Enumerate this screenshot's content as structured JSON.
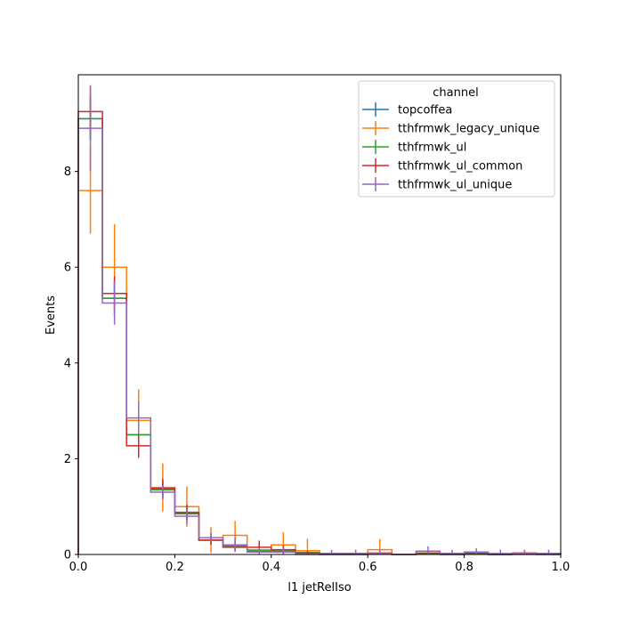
{
  "chart_data": {
    "type": "step-histogram",
    "xlabel": "l1 jetRelIso",
    "ylabel": "Events",
    "xlim": [
      0.0,
      1.0
    ],
    "ylim": [
      0.0,
      10.0
    ],
    "xticks": [
      0.0,
      0.2,
      0.4,
      0.6,
      0.8,
      1.0
    ],
    "xtick_labels": [
      "0.0",
      "0.2",
      "0.4",
      "0.6",
      "0.8",
      "1.0"
    ],
    "yticks": [
      0,
      2,
      4,
      6,
      8
    ],
    "ytick_labels": [
      "0",
      "2",
      "4",
      "6",
      "8"
    ],
    "bin_edges": [
      0.0,
      0.05,
      0.1,
      0.15,
      0.2,
      0.25,
      0.3,
      0.35,
      0.4,
      0.45,
      0.5,
      0.55,
      0.6,
      0.65,
      0.7,
      0.75,
      0.8,
      0.85,
      0.9,
      0.95,
      1.0
    ],
    "legend": {
      "title": "channel",
      "location": "upper right"
    },
    "series": [
      {
        "name": "topcoffea",
        "color": "#1f77b4",
        "values": [
          9.1,
          5.35,
          2.5,
          1.35,
          0.85,
          0.3,
          0.15,
          0.08,
          0.08,
          0.04,
          0.02,
          0.02,
          0.02,
          0.0,
          0.02,
          0.02,
          0.02,
          0.0,
          0.02,
          0.02
        ],
        "errors": [
          0.45,
          0.35,
          0.25,
          0.18,
          0.14,
          0.08,
          0.06,
          0.05,
          0.05,
          0.03,
          0.02,
          0.02,
          0.02,
          0.0,
          0.02,
          0.02,
          0.02,
          0.0,
          0.02,
          0.02
        ]
      },
      {
        "name": "tthfrmwk_legacy_unique",
        "color": "#ff7f0e",
        "values": [
          7.6,
          6.0,
          2.8,
          1.4,
          1.0,
          0.3,
          0.4,
          0.1,
          0.2,
          0.08,
          0.0,
          0.0,
          0.1,
          0.0,
          0.03,
          0.0,
          0.03,
          0.0,
          0.0,
          0.0
        ],
        "errors": [
          0.9,
          0.9,
          0.65,
          0.5,
          0.42,
          0.27,
          0.3,
          0.16,
          0.26,
          0.25,
          0.0,
          0.0,
          0.22,
          0.0,
          0.05,
          0.0,
          0.05,
          0.0,
          0.0,
          0.0
        ]
      },
      {
        "name": "tthfrmwk_ul",
        "color": "#2ca02c",
        "values": [
          9.1,
          5.35,
          2.5,
          1.35,
          0.87,
          0.3,
          0.15,
          0.08,
          0.08,
          0.04,
          0.02,
          0.02,
          0.02,
          0.0,
          0.02,
          0.02,
          0.02,
          0.0,
          0.02,
          0.02
        ],
        "errors": [
          0.45,
          0.35,
          0.25,
          0.18,
          0.14,
          0.08,
          0.06,
          0.05,
          0.05,
          0.03,
          0.02,
          0.02,
          0.02,
          0.0,
          0.02,
          0.02,
          0.02,
          0.0,
          0.02,
          0.02
        ]
      },
      {
        "name": "tthfrmwk_ul_common",
        "color": "#d62728",
        "values": [
          9.25,
          5.45,
          2.27,
          1.38,
          0.88,
          0.3,
          0.17,
          0.15,
          0.1,
          0.03,
          0.0,
          0.0,
          0.03,
          0.0,
          0.03,
          0.0,
          0.03,
          0.0,
          0.03,
          0.0
        ],
        "errors": [
          0.5,
          0.36,
          0.25,
          0.2,
          0.16,
          0.1,
          0.09,
          0.14,
          0.09,
          0.04,
          0.0,
          0.0,
          0.04,
          0.0,
          0.04,
          0.0,
          0.04,
          0.0,
          0.04,
          0.0
        ]
      },
      {
        "name": "tthfrmwk_ul_unique",
        "color": "#9467bd",
        "values": [
          8.9,
          5.25,
          2.85,
          1.3,
          0.8,
          0.35,
          0.2,
          0.05,
          0.05,
          0.0,
          0.02,
          0.02,
          0.02,
          0.0,
          0.07,
          0.02,
          0.05,
          0.02,
          0.02,
          0.02
        ],
        "errors": [
          0.9,
          0.45,
          0.35,
          0.15,
          0.17,
          0.1,
          0.15,
          0.08,
          0.08,
          0.0,
          0.08,
          0.08,
          0.08,
          0.0,
          0.1,
          0.08,
          0.08,
          0.08,
          0.08,
          0.08
        ]
      }
    ]
  }
}
